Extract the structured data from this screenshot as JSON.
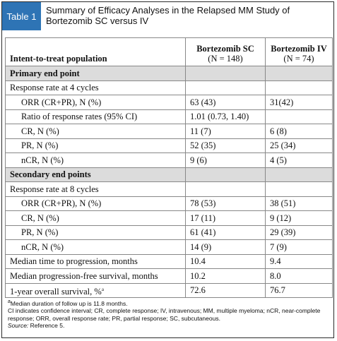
{
  "tag": "Table 1",
  "title": "Summary of Efficacy Analyses in the Relapsed MM Study of Bortezomib SC versus IV",
  "header": {
    "col0": "Intent-to-treat population",
    "col1_name": "Bortezomib SC",
    "col1_n": "(N = 148)",
    "col2_name": "Bortezomib IV",
    "col2_n": "(N = 74)"
  },
  "rows": [
    {
      "type": "section",
      "label": "Primary end point"
    },
    {
      "type": "row",
      "label": "Response rate at 4 cycles",
      "sc": "",
      "iv": ""
    },
    {
      "type": "row",
      "indent": true,
      "label": "ORR (CR+PR), N (%)",
      "sc": "63 (43)",
      "iv": "31(42)"
    },
    {
      "type": "row",
      "indent": true,
      "label": "Ratio of response rates (95% CI)",
      "sc": "1.01 (0.73, 1.40)",
      "iv": ""
    },
    {
      "type": "row",
      "indent": true,
      "label": "CR, N (%)",
      "sc": "11 (7)",
      "iv": "6 (8)"
    },
    {
      "type": "row",
      "indent": true,
      "label": "PR, N (%)",
      "sc": "52 (35)",
      "iv": "25 (34)"
    },
    {
      "type": "row",
      "indent": true,
      "label": "nCR, N (%)",
      "sc": "9 (6)",
      "iv": "4 (5)"
    },
    {
      "type": "section",
      "label": "Secondary end points"
    },
    {
      "type": "row",
      "label": "Response rate at 8 cycles",
      "sc": "",
      "iv": ""
    },
    {
      "type": "row",
      "indent": true,
      "label": "ORR (CR+PR), N (%)",
      "sc": "78 (53)",
      "iv": "38 (51)"
    },
    {
      "type": "row",
      "indent": true,
      "label": "CR, N (%)",
      "sc": "17 (11)",
      "iv": "9 (12)"
    },
    {
      "type": "row",
      "indent": true,
      "label": "PR, N (%)",
      "sc": "61 (41)",
      "iv": "29 (39)"
    },
    {
      "type": "row",
      "indent": true,
      "label": "nCR, N (%)",
      "sc": "14 (9)",
      "iv": "7 (9)"
    },
    {
      "type": "row",
      "label": "Median time to progression, months",
      "sc": "10.4",
      "iv": "9.4"
    },
    {
      "type": "row",
      "label": "Median progression-free survival, months",
      "sc": "10.2",
      "iv": "8.0"
    },
    {
      "type": "row",
      "label": "1-year overall survival, %",
      "sup": "a",
      "sc": "72.6",
      "iv": "76.7"
    }
  ],
  "footnotes": {
    "a": "Median duration of follow up is 11.8 months.",
    "abbrev": "CI indicates confidence interval; CR, complete response; IV, intravenous; MM, multiple myeloma; nCR, near-complete response; ORR, overall response rate; PR, partial response; SC, subcutaneous.",
    "source_label": "Source:",
    "source_text": "Reference 5."
  },
  "colors": {
    "tag_bg": "#2e74b5",
    "section_bg": "#dcdcdc",
    "border": "#888888"
  }
}
